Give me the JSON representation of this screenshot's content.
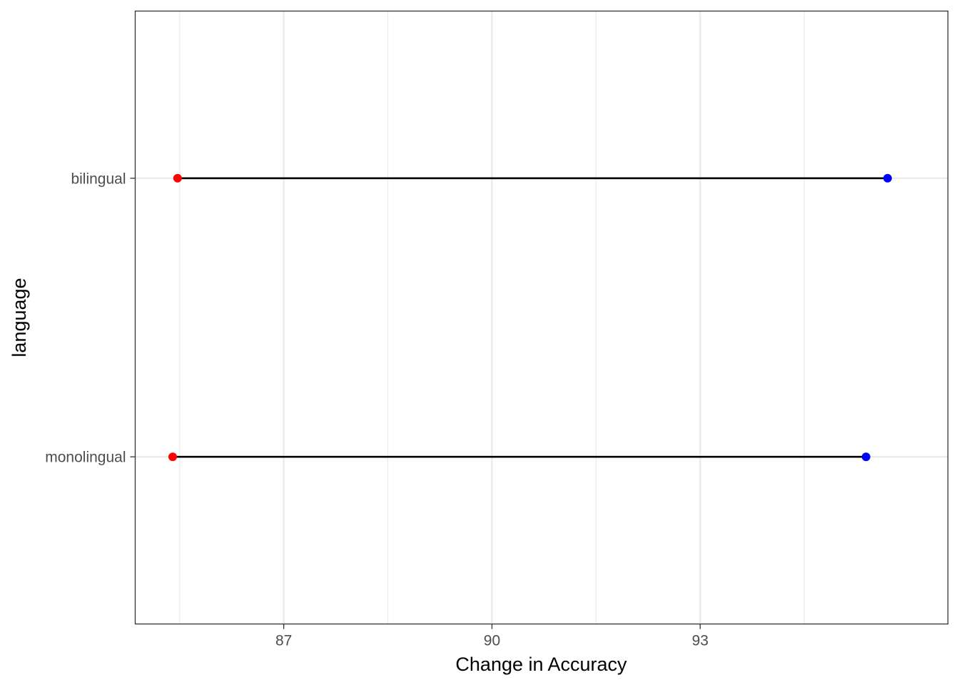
{
  "chart_data": {
    "type": "dumbbell",
    "title": "",
    "xlabel": "Change in Accuracy",
    "ylabel": "language",
    "xlim": [
      84.86,
      96.57
    ],
    "x_ticks": [
      87,
      90,
      93
    ],
    "x_tick_labels": [
      "87",
      "90",
      "93"
    ],
    "categories": [
      "monolingual",
      "bilingual"
    ],
    "series": [
      {
        "values": [
          85.4,
          85.47
        ],
        "color": "#ff0000"
      },
      {
        "values": [
          95.39,
          95.7
        ],
        "color": "#0000ff"
      }
    ],
    "segment_color": "#000000",
    "grid": true,
    "legend": "none"
  }
}
